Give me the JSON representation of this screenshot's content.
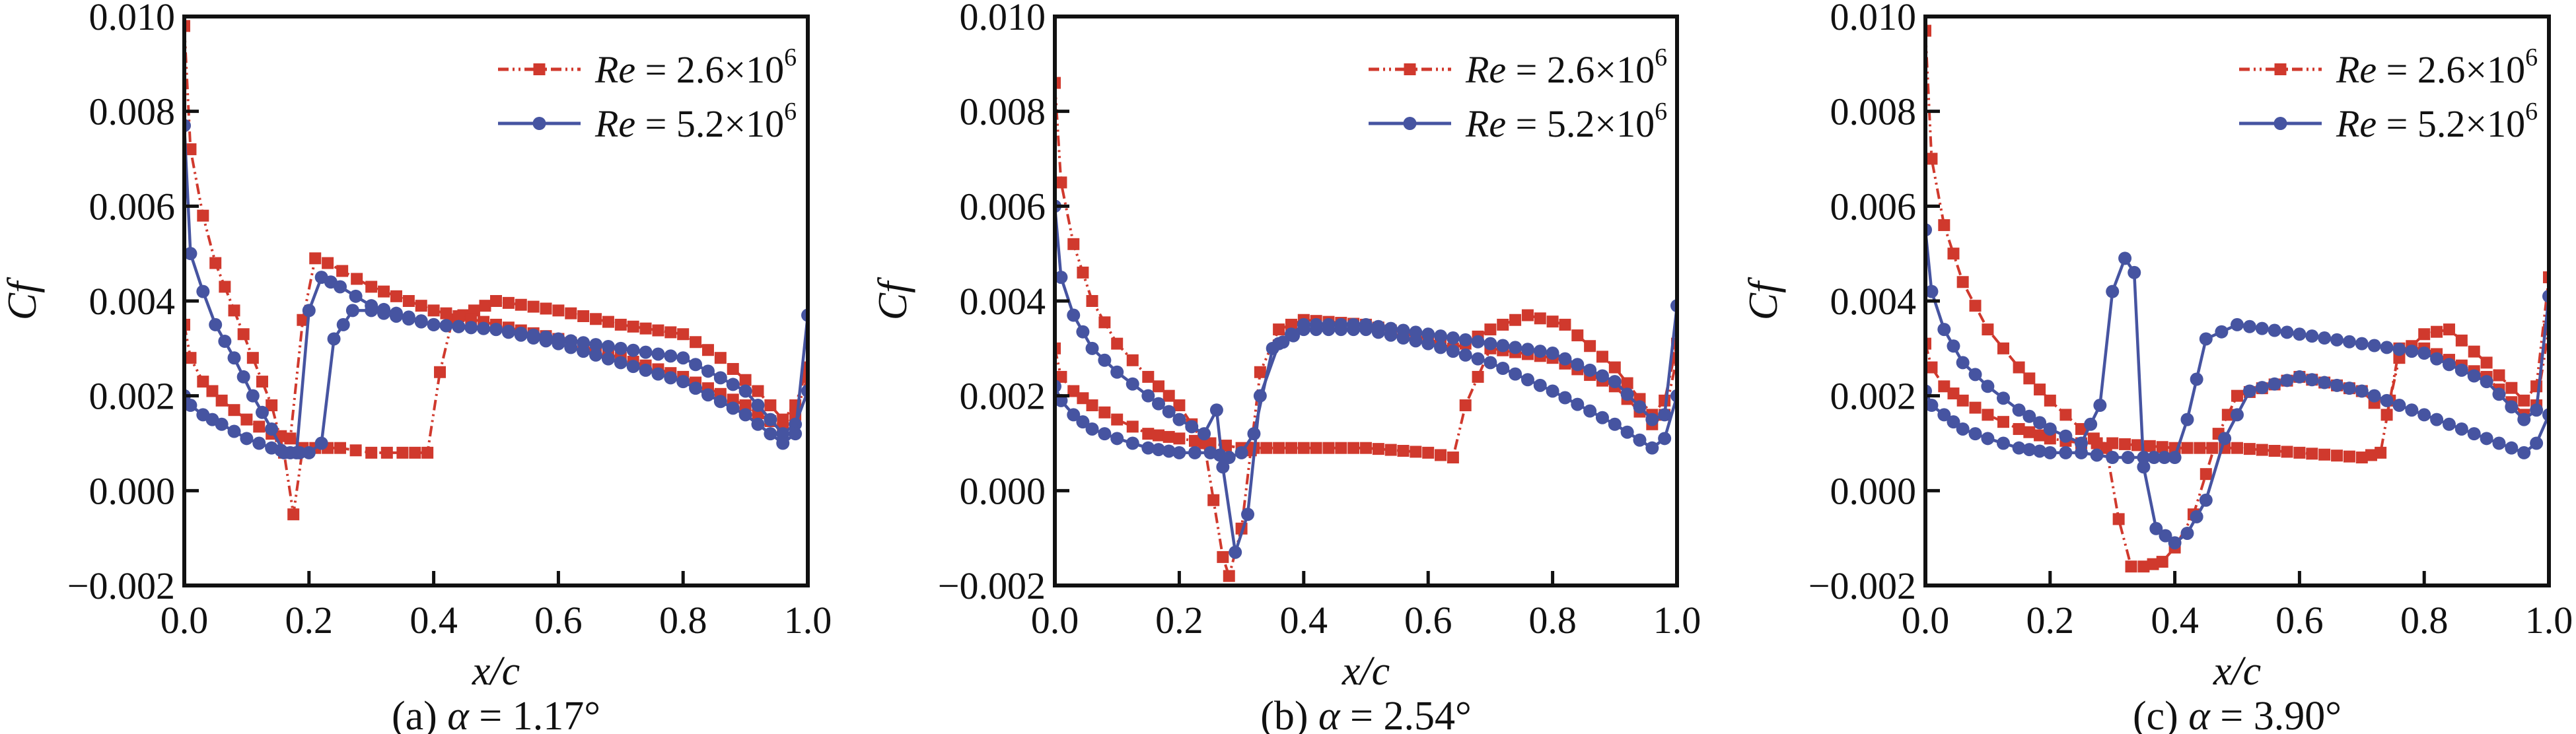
{
  "figure": {
    "colors": {
      "re_low": "#d0392d",
      "re_high": "#4654a1",
      "axis": "#111111"
    }
  },
  "chart_data": [
    {
      "type": "line",
      "panel": "a",
      "caption": "(a) α = 1.17°",
      "caption_prefix": "(a)",
      "caption_alpha": "α",
      "caption_value": "= 1.17°",
      "xlabel": "x/c",
      "ylabel": "Cf",
      "xlim": [
        0,
        1.0
      ],
      "ylim": [
        -0.002,
        0.01
      ],
      "xticks": [
        "0.0",
        "0.2",
        "0.4",
        "0.6",
        "0.8",
        "1.0"
      ],
      "yticks": [
        "−0.002",
        "0.000",
        "0.002",
        "0.004",
        "0.006",
        "0.008",
        "0.010"
      ],
      "legend": [
        "Re = 2.6×10^6",
        "Re = 5.2×10^6"
      ],
      "legend_position": "top-right",
      "series": [
        {
          "name": "Re = 2.6×10^6 (upper)",
          "color_key": "re_low",
          "x": [
            0.0,
            0.01,
            0.03,
            0.05,
            0.08,
            0.11,
            0.14,
            0.16,
            0.175,
            0.19,
            0.21,
            0.25,
            0.3,
            0.35,
            0.39,
            0.41,
            0.43,
            0.5,
            0.6,
            0.7,
            0.8,
            0.86,
            0.92,
            0.96,
            0.98,
            1.0
          ],
          "y": [
            0.0098,
            0.0072,
            0.0058,
            0.0048,
            0.0038,
            0.0028,
            0.0018,
            0.0008,
            -0.0005,
            0.0009,
            0.0009,
            0.0009,
            0.0008,
            0.0008,
            0.0008,
            0.0025,
            0.0036,
            0.004,
            0.0038,
            0.0035,
            0.0033,
            0.0028,
            0.0021,
            0.0015,
            0.0018,
            0.0026
          ]
        },
        {
          "name": "Re = 2.6×10^6 (lower)",
          "color_key": "re_low",
          "x": [
            0.0,
            0.01,
            0.03,
            0.06,
            0.1,
            0.14,
            0.17,
            0.19,
            0.21,
            0.23,
            0.3,
            0.4,
            0.5,
            0.6,
            0.7,
            0.8,
            0.9,
            0.96,
            0.98,
            1.0
          ],
          "y": [
            0.0035,
            0.0028,
            0.0023,
            0.0019,
            0.0015,
            0.0012,
            0.0011,
            0.0036,
            0.0049,
            0.0048,
            0.0043,
            0.0038,
            0.0035,
            0.0032,
            0.0028,
            0.0024,
            0.0018,
            0.0013,
            0.0016,
            0.0024
          ]
        },
        {
          "name": "Re = 5.2×10^6 (upper)",
          "color_key": "re_high",
          "x": [
            0.0,
            0.01,
            0.03,
            0.05,
            0.08,
            0.11,
            0.14,
            0.16,
            0.18,
            0.2,
            0.22,
            0.25,
            0.3,
            0.4,
            0.5,
            0.6,
            0.7,
            0.8,
            0.9,
            0.96,
            0.98,
            1.0
          ],
          "y": [
            0.0077,
            0.005,
            0.0042,
            0.0035,
            0.0028,
            0.002,
            0.0013,
            0.0008,
            0.0008,
            0.0038,
            0.0045,
            0.0043,
            0.0039,
            0.0035,
            0.0034,
            0.0032,
            0.003,
            0.0028,
            0.0021,
            0.0012,
            0.0014,
            0.0021
          ]
        },
        {
          "name": "Re = 5.2×10^6 (lower)",
          "color_key": "re_high",
          "x": [
            0.0,
            0.01,
            0.03,
            0.06,
            0.1,
            0.14,
            0.17,
            0.2,
            0.22,
            0.24,
            0.27,
            0.3,
            0.4,
            0.5,
            0.6,
            0.7,
            0.8,
            0.9,
            0.96,
            0.98,
            1.0
          ],
          "y": [
            0.002,
            0.0018,
            0.0016,
            0.0014,
            0.0011,
            0.0009,
            0.0008,
            0.0008,
            0.001,
            0.0032,
            0.0038,
            0.0038,
            0.0035,
            0.0034,
            0.0031,
            0.0027,
            0.0023,
            0.0016,
            0.001,
            0.0012,
            0.0037
          ]
        }
      ]
    },
    {
      "type": "line",
      "panel": "b",
      "caption": "(b) α = 2.54°",
      "caption_prefix": "(b)",
      "caption_alpha": "α",
      "caption_value": "= 2.54°",
      "xlabel": "x/c",
      "ylabel": "Cf",
      "xlim": [
        0,
        1.0
      ],
      "ylim": [
        -0.002,
        0.01
      ],
      "xticks": [
        "0.0",
        "0.2",
        "0.4",
        "0.6",
        "0.8",
        "1.0"
      ],
      "yticks": [
        "−0.002",
        "0.000",
        "0.002",
        "0.004",
        "0.006",
        "0.008",
        "0.010"
      ],
      "legend": [
        "Re = 2.6×10^6",
        "Re = 5.2×10^6"
      ],
      "legend_position": "top-right",
      "series": [
        {
          "name": "Re = 2.6×10^6 (upper)",
          "color_key": "re_low",
          "x": [
            0.0,
            0.01,
            0.03,
            0.06,
            0.1,
            0.15,
            0.2,
            0.24,
            0.27,
            0.28,
            0.3,
            0.33,
            0.36,
            0.4,
            0.5,
            0.6,
            0.64,
            0.66,
            0.7,
            0.76,
            0.82,
            0.9,
            0.96,
            0.98,
            1.0
          ],
          "y": [
            0.0086,
            0.0065,
            0.0052,
            0.004,
            0.0031,
            0.0024,
            0.0018,
            0.001,
            -0.0014,
            -0.0018,
            -0.0008,
            0.0025,
            0.0034,
            0.0036,
            0.0035,
            0.0032,
            0.003,
            0.0031,
            0.0034,
            0.0037,
            0.0035,
            0.0026,
            0.0016,
            0.0019,
            0.0031
          ]
        },
        {
          "name": "Re = 2.6×10^6 (lower)",
          "color_key": "re_low",
          "x": [
            0.0,
            0.01,
            0.03,
            0.06,
            0.1,
            0.15,
            0.2,
            0.25,
            0.3,
            0.4,
            0.5,
            0.6,
            0.64,
            0.66,
            0.7,
            0.8,
            0.9,
            0.96,
            0.98,
            1.0
          ],
          "y": [
            0.003,
            0.0024,
            0.0021,
            0.0018,
            0.0015,
            0.0012,
            0.0011,
            0.001,
            0.0009,
            0.0009,
            0.0009,
            0.0008,
            0.0007,
            0.0018,
            0.003,
            0.0028,
            0.0022,
            0.0014,
            0.0016,
            0.0028
          ]
        },
        {
          "name": "Re = 5.2×10^6 (upper)",
          "color_key": "re_high",
          "x": [
            0.0,
            0.01,
            0.03,
            0.06,
            0.1,
            0.15,
            0.2,
            0.24,
            0.26,
            0.27,
            0.29,
            0.31,
            0.33,
            0.36,
            0.4,
            0.5,
            0.6,
            0.7,
            0.8,
            0.9,
            0.96,
            0.98,
            1.0
          ],
          "y": [
            0.006,
            0.0045,
            0.0037,
            0.003,
            0.0025,
            0.002,
            0.0015,
            0.0012,
            0.0017,
            0.0005,
            -0.0013,
            -0.0005,
            0.002,
            0.0031,
            0.0035,
            0.0035,
            0.0033,
            0.0031,
            0.0029,
            0.0023,
            0.0015,
            0.0016,
            0.0039
          ]
        },
        {
          "name": "Re = 5.2×10^6 (lower)",
          "color_key": "re_high",
          "x": [
            0.0,
            0.01,
            0.03,
            0.06,
            0.1,
            0.15,
            0.2,
            0.25,
            0.28,
            0.3,
            0.32,
            0.35,
            0.4,
            0.5,
            0.6,
            0.7,
            0.8,
            0.9,
            0.96,
            0.98,
            1.0
          ],
          "y": [
            0.0022,
            0.0019,
            0.0016,
            0.0013,
            0.0011,
            0.0009,
            0.0008,
            0.0008,
            0.0007,
            0.0008,
            0.0012,
            0.003,
            0.0034,
            0.0034,
            0.0031,
            0.0027,
            0.0021,
            0.0014,
            0.0009,
            0.0011,
            0.002
          ]
        }
      ]
    },
    {
      "type": "line",
      "panel": "c",
      "caption": "(c) α = 3.90°",
      "caption_prefix": "(c)",
      "caption_alpha": "α",
      "caption_value": "= 3.90°",
      "xlabel": "x/c",
      "ylabel": "Cf",
      "xlim": [
        0,
        1.0
      ],
      "ylim": [
        -0.002,
        0.01
      ],
      "xticks": [
        "0.0",
        "0.2",
        "0.4",
        "0.6",
        "0.8",
        "1.0"
      ],
      "yticks": [
        "−0.002",
        "0.000",
        "0.002",
        "0.004",
        "0.006",
        "0.008",
        "0.010"
      ],
      "legend": [
        "Re = 2.6×10^6",
        "Re = 5.2×10^6"
      ],
      "legend_position": "top-right",
      "series": [
        {
          "name": "Re = 2.6×10^6 (upper)",
          "color_key": "re_low",
          "x": [
            0.0,
            0.01,
            0.03,
            0.06,
            0.1,
            0.15,
            0.2,
            0.25,
            0.29,
            0.31,
            0.33,
            0.35,
            0.38,
            0.4,
            0.43,
            0.47,
            0.5,
            0.6,
            0.7,
            0.74,
            0.76,
            0.8,
            0.84,
            0.9,
            0.96,
            0.98,
            1.0
          ],
          "y": [
            0.0097,
            0.007,
            0.0056,
            0.0044,
            0.0034,
            0.0026,
            0.0019,
            0.0013,
            0.0009,
            -0.0006,
            -0.0016,
            -0.0016,
            -0.0015,
            -0.0012,
            -0.0005,
            0.0012,
            0.002,
            0.0024,
            0.0021,
            0.0016,
            0.0028,
            0.0033,
            0.0034,
            0.0027,
            0.0019,
            0.0022,
            0.0045
          ]
        },
        {
          "name": "Re = 2.6×10^6 (lower)",
          "color_key": "re_low",
          "x": [
            0.0,
            0.01,
            0.03,
            0.06,
            0.1,
            0.15,
            0.2,
            0.25,
            0.3,
            0.4,
            0.5,
            0.6,
            0.7,
            0.73,
            0.76,
            0.8,
            0.9,
            0.96,
            0.98,
            1.0
          ],
          "y": [
            0.0031,
            0.0026,
            0.0022,
            0.0019,
            0.0016,
            0.0013,
            0.0011,
            0.001,
            0.001,
            0.0009,
            0.0009,
            0.0008,
            0.0007,
            0.0008,
            0.003,
            0.003,
            0.0024,
            0.0016,
            0.0018,
            0.0034
          ]
        },
        {
          "name": "Re = 5.2×10^6 (upper)",
          "color_key": "re_high",
          "x": [
            0.0,
            0.01,
            0.03,
            0.06,
            0.1,
            0.15,
            0.2,
            0.25,
            0.28,
            0.3,
            0.32,
            0.335,
            0.35,
            0.37,
            0.4,
            0.42,
            0.45,
            0.48,
            0.52,
            0.6,
            0.7,
            0.8,
            0.9,
            0.96,
            0.98,
            1.0
          ],
          "y": [
            0.0055,
            0.0042,
            0.0034,
            0.0027,
            0.0022,
            0.0017,
            0.0013,
            0.001,
            0.0018,
            0.0042,
            0.0049,
            0.0046,
            0.0005,
            -0.0008,
            -0.0011,
            -0.0009,
            -0.0002,
            0.0011,
            0.0021,
            0.0024,
            0.0021,
            0.0016,
            0.0011,
            0.0008,
            0.001,
            0.0016
          ]
        },
        {
          "name": "Re = 5.2×10^6 (lower)",
          "color_key": "re_high",
          "x": [
            0.0,
            0.01,
            0.03,
            0.06,
            0.1,
            0.15,
            0.2,
            0.25,
            0.3,
            0.35,
            0.4,
            0.42,
            0.45,
            0.5,
            0.6,
            0.7,
            0.8,
            0.9,
            0.96,
            0.98,
            1.0
          ],
          "y": [
            0.0021,
            0.0018,
            0.0016,
            0.0013,
            0.0011,
            0.0009,
            0.0008,
            0.0008,
            0.0007,
            0.0007,
            0.0007,
            0.0015,
            0.0032,
            0.0035,
            0.0033,
            0.0031,
            0.0029,
            0.0023,
            0.0015,
            0.0017,
            0.0041
          ]
        }
      ]
    }
  ]
}
